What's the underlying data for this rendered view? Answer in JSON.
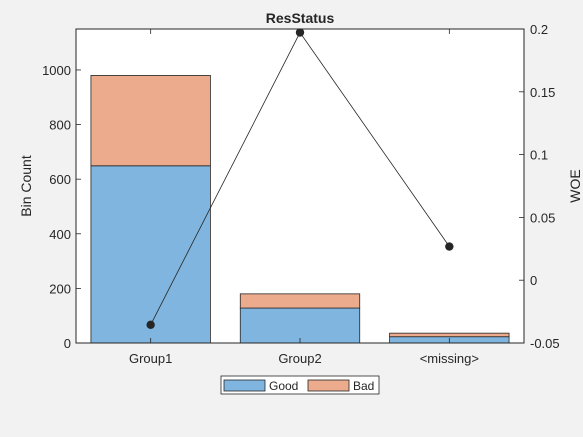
{
  "chart_data": {
    "type": "bar",
    "title": "ResStatus",
    "categories": [
      "Group1",
      "Group2",
      "<missing>"
    ],
    "stacked": true,
    "series": [
      {
        "name": "Good",
        "values": [
          649,
          128,
          23
        ],
        "color": "#7fb5de",
        "axis": "left"
      },
      {
        "name": "Bad",
        "values": [
          331,
          52,
          13
        ],
        "color": "#ebab8c",
        "axis": "left"
      }
    ],
    "line_series": {
      "values": [
        -0.0355,
        0.1972,
        0.0268
      ],
      "color": "#262626",
      "axis": "right"
    },
    "ylabel": "Bin Count",
    "ylim": [
      0,
      1150
    ],
    "yticks": [
      "0",
      "200",
      "400",
      "600",
      "800",
      "1000"
    ],
    "y2label": "WOE",
    "y2lim": [
      -0.05,
      0.2
    ],
    "y2ticks": [
      "-0.05",
      "0",
      "0.05",
      "0.1",
      "0.15",
      "0.2"
    ],
    "grid": false,
    "legend": "bottom-outside"
  }
}
